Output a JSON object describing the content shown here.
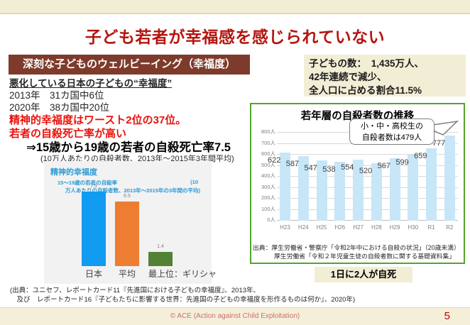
{
  "page": {
    "title": "子ども若者が幸福感を感じられていない",
    "footer_text": "© ACE (Action against Child Exploitation)",
    "page_number": "5"
  },
  "left_section": {
    "heading": "深刻な子どものウェルビーイング（幸福度）",
    "subheading": "悪化している日本の子どもの“幸福度”",
    "rank_2013": "2013年　31カ国中6位",
    "rank_2020": "2020年　38カ国中20位",
    "red_line1": "精神的幸福度はワースト2位の37位。",
    "red_line2": "若者の自殺死亡率が高い",
    "arrow_line": "⇒15歳から19歳の若者の自殺死亡率7.5",
    "arrow_note": "(10万人あたりの自殺者数、2013年～2015年3年間平均)",
    "footnote_line1": "(出典：ユニセフ、レポートカード11『先進国における子どもの幸福度』、2013年、",
    "footnote_line2": "　及び　レポートカード16『子どもたちに影響する世界：先進国の子どもの幸福度を形作るものは何か』、2020年)"
  },
  "right_section": {
    "info_line1": "子どもの数：　1,435万人、",
    "info_line2": "42年連続で減少、",
    "info_line3": "全人口に占める割合11.5%",
    "callout_line1": "小・中・高校生の",
    "callout_line2": "自殺者数は479人",
    "source_line1": "出典：厚生労働省・警察庁「令和2年中における自殺の状況」（20歳未満）",
    "source_line2": "厚生労働省「令和２年児童生徒の自殺者数に関する基礎資料集」",
    "highlight": "1日に2人が自死"
  },
  "chart_data": [
    {
      "type": "bar",
      "title": "精神的幸福度",
      "subtitle_left": "15～19歳の若者の自殺率",
      "subtitle_right": "(10",
      "subtitle_line2": "万人あたりの自殺者数、2013年～2015年の3年間の平均)",
      "categories": [
        "日本",
        "平均",
        "最上位：ギリシャ"
      ],
      "values": [
        7.5,
        6.5,
        1.4
      ],
      "bar_colors": [
        "#119BF1",
        "#ED7D31",
        "#548235"
      ],
      "ylim": [
        0,
        8
      ],
      "grid": false,
      "legend": "none",
      "value_labels": true
    },
    {
      "type": "bar",
      "title": "若年層の自殺者数の推移",
      "categories": [
        "H23",
        "H24",
        "H25",
        "H26",
        "H27",
        "H28",
        "H29",
        "H30",
        "R1",
        "R2"
      ],
      "values": [
        622,
        587,
        547,
        538,
        554,
        520,
        567,
        599,
        659,
        777
      ],
      "bar_color": "#C7E6F7",
      "yticks": [
        0,
        100,
        200,
        300,
        400,
        500,
        600,
        700,
        800
      ],
      "ytick_suffix": "人",
      "ylim": [
        0,
        800
      ],
      "grid": true,
      "legend": "none",
      "annotation": "小・中・高校生の自殺者数は479人",
      "value_labels": true
    }
  ]
}
